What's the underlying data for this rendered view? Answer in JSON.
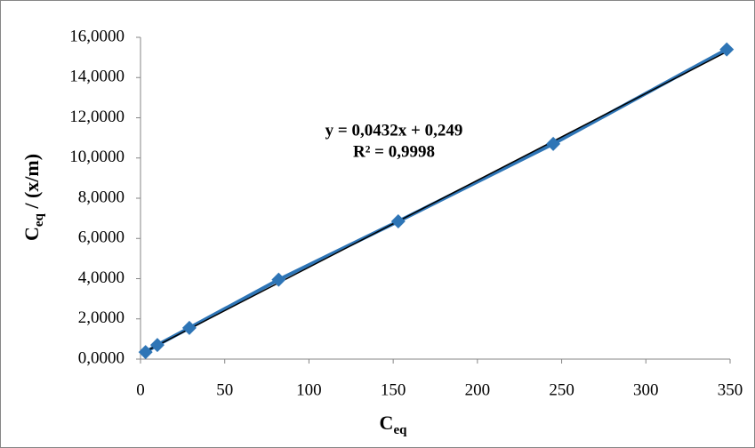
{
  "chart_data": {
    "type": "scatter",
    "x_label": [
      "C",
      "eq"
    ],
    "y_label": [
      "C",
      "eq",
      " / (x/m)"
    ],
    "series": [
      {
        "color": "#2e75b6",
        "x": [
          3,
          10,
          29,
          82,
          153,
          245,
          348
        ],
        "values": [
          0.35,
          0.7,
          1.55,
          3.95,
          6.85,
          10.7,
          15.4
        ]
      }
    ],
    "trendline": {
      "slope": 0.0432,
      "intercept": 0.249,
      "color": "#000000",
      "equation": "y = 0,0432x + 0,249",
      "r2": "R² = 0,9998"
    },
    "xlim": [
      0,
      350
    ],
    "xticks": [
      0,
      50,
      100,
      150,
      200,
      250,
      300,
      350
    ],
    "ylim": [
      0,
      16
    ],
    "yticks": [
      {
        "value": 0,
        "label": "0,0000"
      },
      {
        "value": 2,
        "label": "2,0000"
      },
      {
        "value": 4,
        "label": "4,0000"
      },
      {
        "value": 6,
        "label": "6,0000"
      },
      {
        "value": 8,
        "label": "8,0000"
      },
      {
        "value": 10,
        "label": "10,0000"
      },
      {
        "value": 12,
        "label": "12,0000"
      },
      {
        "value": 14,
        "label": "14,0000"
      },
      {
        "value": 16,
        "label": "16,0000"
      }
    ],
    "grid": false
  }
}
